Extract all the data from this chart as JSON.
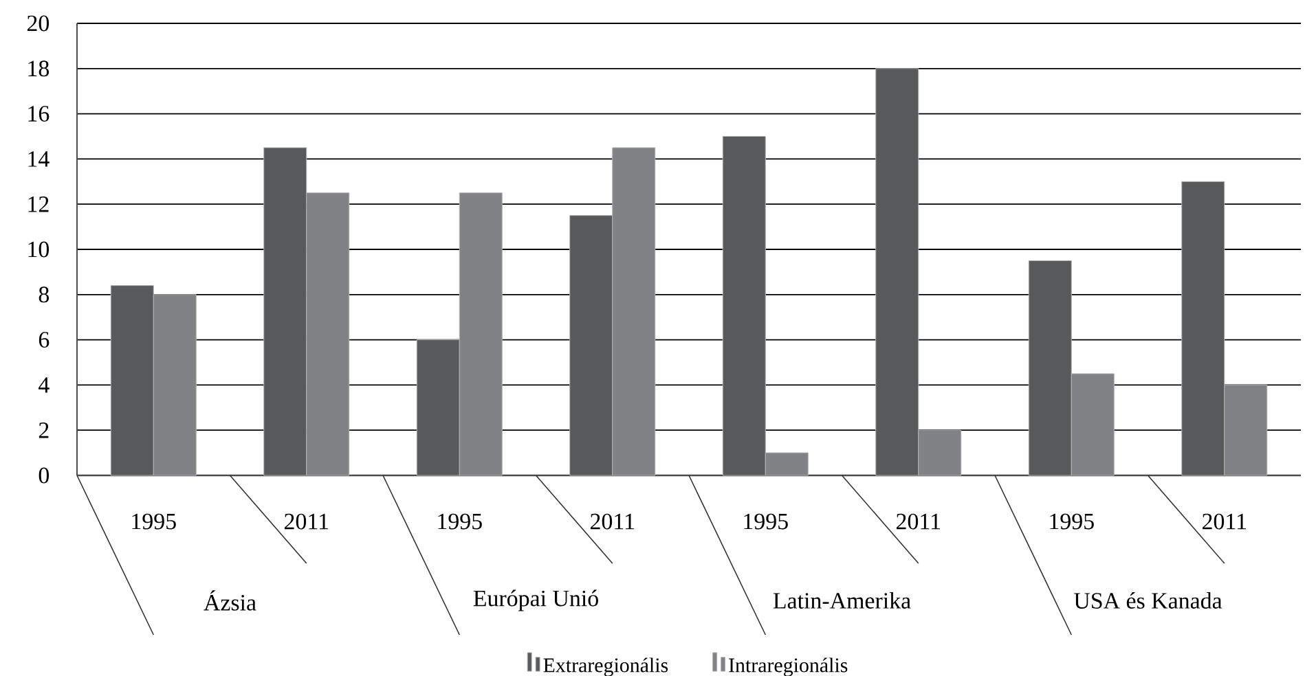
{
  "chart_data": {
    "type": "bar",
    "categories": [
      "1995",
      "2011",
      "1995",
      "2011",
      "1995",
      "2011",
      "1995",
      "2011"
    ],
    "annotations": [
      "Ázsia",
      "Európai Unió",
      "Latin-Amerika",
      "USA és Kanada"
    ],
    "series": [
      {
        "name": "Extraregionális",
        "color": "#58595b",
        "values": [
          8.4,
          14.5,
          6.0,
          11.5,
          15.0,
          18.0,
          9.5,
          13.0
        ]
      },
      {
        "name": "Intraregionális",
        "color": "#818285",
        "values": [
          8.0,
          12.5,
          12.5,
          14.5,
          1.0,
          2.0,
          4.5,
          4.0
        ]
      }
    ],
    "ylim": [
      0,
      20
    ],
    "yticks": [
      0,
      2,
      4,
      6,
      8,
      10,
      12,
      14,
      16,
      18,
      20
    ],
    "grid": "y",
    "legend": "bottom"
  }
}
